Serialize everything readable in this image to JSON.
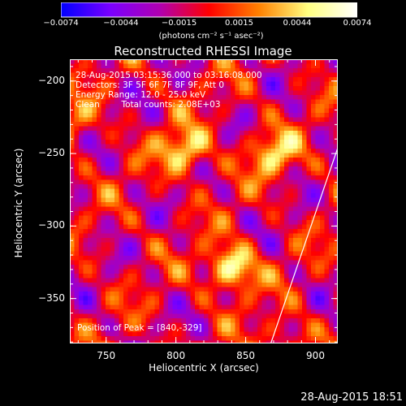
{
  "chart_data": {
    "type": "heatmap",
    "title": "Reconstructed RHESSI Image",
    "xlabel": "Heliocentric X (arcsec)",
    "ylabel": "Heliocentric Y (arcsec)",
    "xlim": [
      724,
      916
    ],
    "ylim": [
      -381,
      -185
    ],
    "x_ticks": [
      750,
      800,
      850,
      900
    ],
    "y_ticks": [
      -200,
      -250,
      -300,
      -350
    ],
    "x_tick_labels": [
      "750",
      "800",
      "850",
      "900"
    ],
    "y_tick_labels": [
      "−200",
      "−250",
      "−300",
      "−350"
    ],
    "colorbar": {
      "range": [
        -0.0074,
        0.0074
      ],
      "ticks": [
        -0.0074,
        -0.0044,
        -0.0015,
        0.0015,
        0.0044,
        0.0074
      ],
      "tick_labels": [
        "−0.0074",
        "−0.0044",
        "−0.0015",
        "0.0015",
        "0.0044",
        "0.0074"
      ],
      "unit_label": "(photons cm⁻² s⁻¹ asec⁻²)",
      "colors": [
        "#0000ff",
        "#7a00ff",
        "#b000b0",
        "#ff0000",
        "#ff8000",
        "#ffff80",
        "#ffffff"
      ]
    },
    "sources": [
      {
        "x": 840,
        "y": -329,
        "peak": 0.0074
      },
      {
        "x": 807,
        "y": -248,
        "peak": 0.0062
      },
      {
        "x": 870,
        "y": -250,
        "peak": 0.005
      },
      {
        "x": 728,
        "y": -228,
        "peak": 0.003
      },
      {
        "x": 880,
        "y": -378,
        "peak": 0.0028
      }
    ],
    "limb_line": [
      [
        868,
        -381
      ],
      [
        916,
        -246
      ]
    ],
    "annotations": {
      "time_range": "28-Aug-2015 03:15:36.000 to 03:16:08.000",
      "detectors": "Detectors: 3F 5F 6F 7F 8F 9F, Att 0",
      "energy": "Energy Range: 12.0 - 25.0 keV",
      "method": "Clean",
      "counts": "Total counts: 2.08E+03",
      "peak": "Position of Peak = [840,-329]"
    }
  },
  "footer_timestamp": "28-Aug-2015 18:51"
}
